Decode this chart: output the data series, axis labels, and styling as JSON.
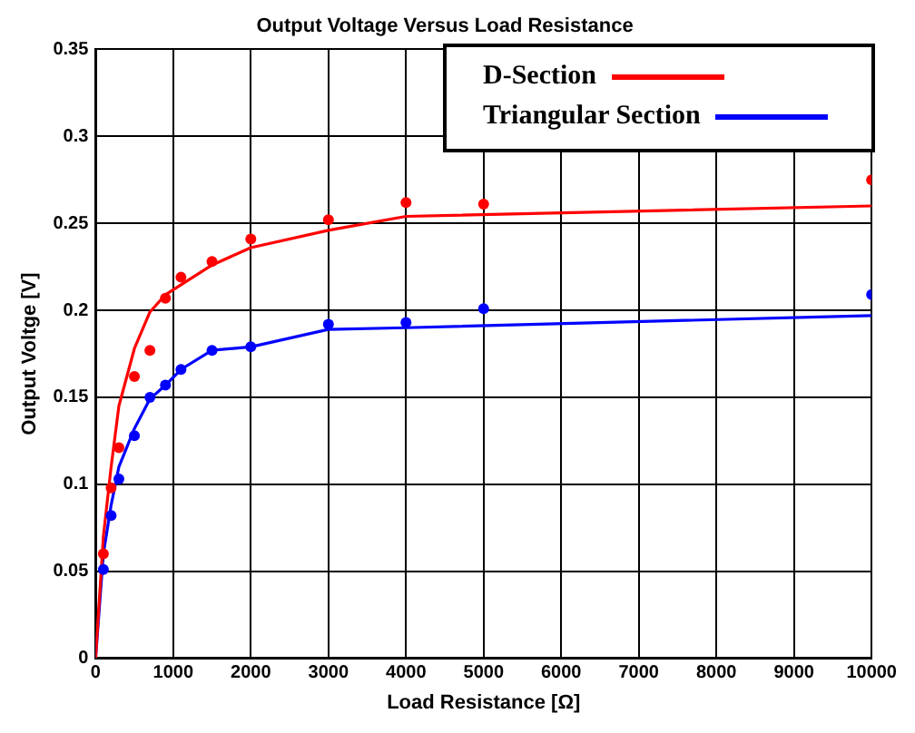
{
  "chart_data": {
    "type": "scatter",
    "title": "Output Voltage Versus Load Resistance",
    "xlabel": "Load Resistance [Ω]",
    "ylabel": "Output Voltge [V]",
    "xlim": [
      0,
      10000
    ],
    "xticks": [
      0,
      1000,
      2000,
      3000,
      4000,
      5000,
      6000,
      7000,
      8000,
      9000,
      10000
    ],
    "ylim": [
      0,
      0.35
    ],
    "yticks": [
      0,
      0.05,
      0.1,
      0.15,
      0.2,
      0.25,
      0.3,
      0.35
    ],
    "grid": true,
    "legend": "top right",
    "series": [
      {
        "name": "D-Section",
        "type": "line",
        "color": "#ff0000",
        "marker": "none",
        "x": [
          0,
          100,
          200,
          300,
          500,
          700,
          900,
          1500,
          2000,
          3000,
          4000,
          10000
        ],
        "values": [
          0,
          0.07,
          0.11,
          0.145,
          0.178,
          0.199,
          0.209,
          0.226,
          0.236,
          0.246,
          0.254,
          0.26
        ]
      },
      {
        "name": "Triangular Section",
        "type": "line",
        "color": "#0000ff",
        "marker": "none",
        "x": [
          0,
          100,
          200,
          300,
          500,
          700,
          900,
          1100,
          1500,
          2000,
          3000,
          4000,
          10000
        ],
        "values": [
          0,
          0.06,
          0.088,
          0.11,
          0.132,
          0.149,
          0.157,
          0.166,
          0.177,
          0.179,
          0.189,
          0.19,
          0.197
        ]
      },
      {
        "color": "#ff0000",
        "marker": "circle",
        "x": [
          100,
          200,
          300,
          500,
          700,
          900,
          1100,
          1500,
          2000,
          3000,
          4000,
          5000,
          10000
        ],
        "values": [
          0.06,
          0.098,
          0.121,
          0.162,
          0.177,
          0.207,
          0.219,
          0.228,
          0.241,
          0.252,
          0.262,
          0.261,
          0.275
        ]
      },
      {
        "color": "#0000ff",
        "marker": "circle",
        "x": [
          100,
          200,
          300,
          500,
          700,
          900,
          1100,
          1500,
          2000,
          3000,
          4000,
          5000,
          10000
        ],
        "values": [
          0.051,
          0.082,
          0.103,
          0.128,
          0.15,
          0.157,
          0.166,
          0.177,
          0.179,
          0.192,
          0.193,
          0.201,
          0.209
        ]
      }
    ]
  }
}
